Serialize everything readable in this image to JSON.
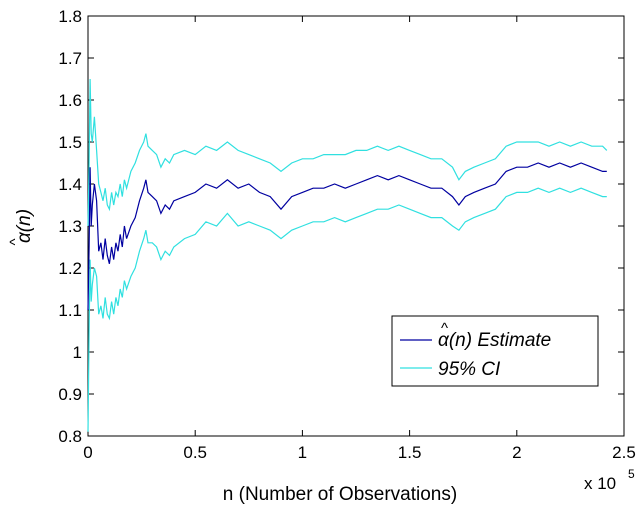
{
  "chart_data": {
    "type": "line",
    "title": "",
    "xlabel": "n (Number of Observations)",
    "ylabel": "α(n)",
    "ylabel_hat": "^",
    "x_multiplier_base": "x 10",
    "x_multiplier_exp": "5",
    "xlim": [
      0,
      2.5
    ],
    "ylim": [
      0.8,
      1.8
    ],
    "xticks": [
      0,
      0.5,
      1,
      1.5,
      2,
      2.5
    ],
    "xtick_labels": [
      "0",
      "0.5",
      "1",
      "1.5",
      "2",
      "2.5"
    ],
    "yticks": [
      0.8,
      0.9,
      1.0,
      1.1,
      1.2,
      1.3,
      1.4,
      1.5,
      1.6,
      1.7,
      1.8
    ],
    "ytick_labels": [
      "0.8",
      "0.9",
      "1",
      "1.1",
      "1.2",
      "1.3",
      "1.4",
      "1.5",
      "1.6",
      "1.7",
      "1.8"
    ],
    "grid": false,
    "legend_position": "lower-right",
    "series": [
      {
        "name": "α(n) Estimate",
        "legend_hat": "^",
        "color": "#0000a0",
        "x": [
          0.0,
          0.005,
          0.01,
          0.015,
          0.02,
          0.03,
          0.04,
          0.05,
          0.06,
          0.07,
          0.08,
          0.09,
          0.1,
          0.11,
          0.12,
          0.13,
          0.14,
          0.15,
          0.16,
          0.17,
          0.18,
          0.2,
          0.22,
          0.24,
          0.26,
          0.27,
          0.28,
          0.3,
          0.32,
          0.34,
          0.36,
          0.38,
          0.4,
          0.45,
          0.5,
          0.55,
          0.6,
          0.65,
          0.7,
          0.75,
          0.8,
          0.85,
          0.9,
          0.95,
          1.0,
          1.05,
          1.1,
          1.15,
          1.2,
          1.25,
          1.3,
          1.35,
          1.4,
          1.45,
          1.5,
          1.55,
          1.6,
          1.65,
          1.7,
          1.73,
          1.76,
          1.8,
          1.85,
          1.9,
          1.95,
          2.0,
          2.05,
          2.1,
          2.15,
          2.2,
          2.25,
          2.3,
          2.35,
          2.4,
          2.42
        ],
        "values": [
          1.1,
          1.25,
          1.44,
          1.3,
          1.35,
          1.4,
          1.36,
          1.24,
          1.26,
          1.22,
          1.27,
          1.23,
          1.21,
          1.25,
          1.22,
          1.26,
          1.24,
          1.28,
          1.25,
          1.3,
          1.27,
          1.3,
          1.32,
          1.36,
          1.39,
          1.41,
          1.38,
          1.37,
          1.36,
          1.33,
          1.35,
          1.34,
          1.36,
          1.37,
          1.38,
          1.4,
          1.39,
          1.41,
          1.39,
          1.4,
          1.38,
          1.37,
          1.34,
          1.37,
          1.38,
          1.39,
          1.39,
          1.4,
          1.39,
          1.4,
          1.41,
          1.42,
          1.41,
          1.42,
          1.41,
          1.4,
          1.39,
          1.39,
          1.37,
          1.35,
          1.37,
          1.38,
          1.39,
          1.4,
          1.43,
          1.44,
          1.44,
          1.45,
          1.44,
          1.45,
          1.44,
          1.45,
          1.44,
          1.43,
          1.43
        ]
      },
      {
        "name": "95% CI",
        "color": "#30e0e0",
        "x": [
          0.0,
          0.005,
          0.01,
          0.015,
          0.02,
          0.03,
          0.04,
          0.05,
          0.06,
          0.07,
          0.08,
          0.09,
          0.1,
          0.11,
          0.12,
          0.13,
          0.14,
          0.15,
          0.16,
          0.17,
          0.18,
          0.2,
          0.22,
          0.24,
          0.26,
          0.27,
          0.28,
          0.3,
          0.32,
          0.34,
          0.36,
          0.38,
          0.4,
          0.45,
          0.5,
          0.55,
          0.6,
          0.65,
          0.7,
          0.75,
          0.8,
          0.85,
          0.9,
          0.95,
          1.0,
          1.05,
          1.1,
          1.15,
          1.2,
          1.25,
          1.3,
          1.35,
          1.4,
          1.45,
          1.5,
          1.55,
          1.6,
          1.65,
          1.7,
          1.73,
          1.76,
          1.8,
          1.85,
          1.9,
          1.95,
          2.0,
          2.05,
          2.1,
          2.15,
          2.2,
          2.25,
          2.3,
          2.35,
          2.4,
          2.42
        ],
        "upper": [
          1.3,
          1.45,
          1.65,
          1.52,
          1.5,
          1.56,
          1.48,
          1.4,
          1.38,
          1.36,
          1.39,
          1.35,
          1.34,
          1.38,
          1.35,
          1.38,
          1.37,
          1.4,
          1.37,
          1.41,
          1.39,
          1.43,
          1.45,
          1.48,
          1.5,
          1.52,
          1.49,
          1.48,
          1.47,
          1.44,
          1.46,
          1.45,
          1.47,
          1.48,
          1.47,
          1.49,
          1.48,
          1.5,
          1.48,
          1.47,
          1.46,
          1.45,
          1.43,
          1.45,
          1.46,
          1.46,
          1.47,
          1.47,
          1.47,
          1.48,
          1.48,
          1.49,
          1.48,
          1.49,
          1.48,
          1.47,
          1.46,
          1.46,
          1.44,
          1.41,
          1.43,
          1.44,
          1.45,
          1.46,
          1.49,
          1.5,
          1.5,
          1.5,
          1.49,
          1.5,
          1.49,
          1.5,
          1.49,
          1.49,
          1.48
        ],
        "lower": [
          0.81,
          1.05,
          1.22,
          1.12,
          1.16,
          1.2,
          1.18,
          1.09,
          1.11,
          1.08,
          1.13,
          1.09,
          1.08,
          1.12,
          1.09,
          1.13,
          1.11,
          1.15,
          1.13,
          1.17,
          1.15,
          1.18,
          1.2,
          1.24,
          1.27,
          1.29,
          1.26,
          1.26,
          1.25,
          1.22,
          1.24,
          1.23,
          1.25,
          1.27,
          1.28,
          1.31,
          1.3,
          1.33,
          1.3,
          1.31,
          1.3,
          1.29,
          1.27,
          1.29,
          1.3,
          1.31,
          1.31,
          1.32,
          1.31,
          1.32,
          1.33,
          1.34,
          1.34,
          1.35,
          1.34,
          1.33,
          1.32,
          1.32,
          1.3,
          1.29,
          1.31,
          1.32,
          1.33,
          1.34,
          1.37,
          1.38,
          1.38,
          1.39,
          1.38,
          1.39,
          1.38,
          1.39,
          1.38,
          1.37,
          1.37
        ]
      }
    ]
  }
}
